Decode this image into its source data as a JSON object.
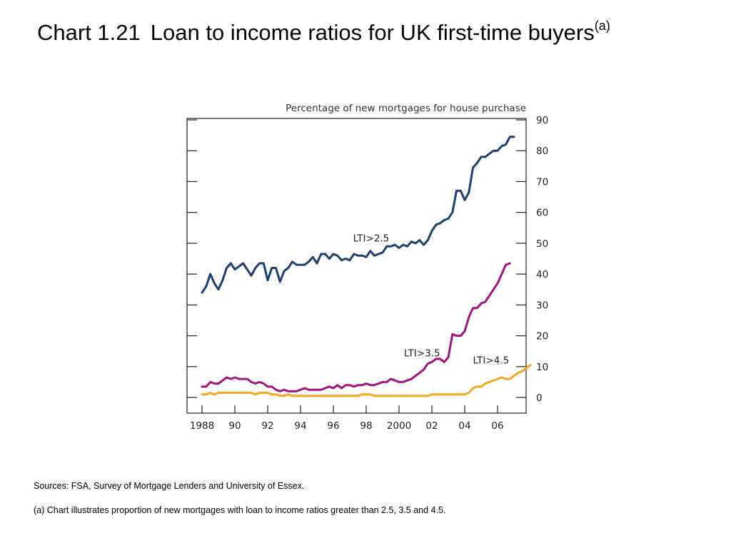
{
  "title": {
    "number": "Chart 1.21",
    "text": "Loan to income ratios for UK first-time buyers",
    "superscript": "(a)"
  },
  "footnotes": {
    "sources": "Sources:  FSA, Survey of Mortgage Lenders and University of Essex.",
    "note": "(a)  Chart illustrates proportion of new mortgages with loan to income ratios greater than 2.5, 3.5 and 4.5."
  },
  "chart_data": {
    "type": "line",
    "axis_caption": "Percentage of new mortgages for house purchase",
    "y_axis_side": "right",
    "ylim": [
      0,
      90
    ],
    "y_ticks": [
      0,
      10,
      20,
      30,
      40,
      50,
      60,
      70,
      80,
      90
    ],
    "xlim": [
      1987.6,
      2007.6
    ],
    "x_ticks": [
      {
        "value": 1988,
        "label": "1988"
      },
      {
        "value": 1990,
        "label": "90"
      },
      {
        "value": 1992,
        "label": "92"
      },
      {
        "value": 1994,
        "label": "94"
      },
      {
        "value": 1996,
        "label": "96"
      },
      {
        "value": 1998,
        "label": "98"
      },
      {
        "value": 2000,
        "label": "2000"
      },
      {
        "value": 2002,
        "label": "02"
      },
      {
        "value": 2004,
        "label": "04"
      },
      {
        "value": 2006,
        "label": "06"
      }
    ],
    "grid": false,
    "x_start": 1988.0,
    "x_step": 0.25,
    "series": [
      {
        "name": "LTI>2.5",
        "color": "#1f3f6e",
        "label_at": [
          1997.2,
          50.5
        ],
        "values": [
          34,
          36,
          40,
          37,
          35,
          38,
          42,
          43.5,
          41.5,
          42.5,
          43.5,
          41.5,
          39.5,
          42,
          43.5,
          43.5,
          38,
          42,
          42,
          37.5,
          41,
          42,
          44,
          43,
          43,
          43,
          44,
          45.5,
          43.5,
          46.5,
          46.5,
          45,
          46.5,
          46,
          44.5,
          45,
          44.5,
          46.5,
          46,
          46,
          45.5,
          47.5,
          46,
          46.5,
          47,
          49,
          49,
          49.5,
          48.5,
          49.5,
          49,
          50.5,
          50,
          51,
          49.5,
          51,
          54,
          56,
          56.5,
          57.5,
          58,
          60,
          67,
          67,
          64,
          66.5,
          74.5,
          76,
          78,
          78,
          79,
          80,
          80,
          81.5,
          82,
          84.5,
          84.5
        ]
      },
      {
        "name": "LTI>3.5",
        "color": "#a0167c",
        "label_at": [
          2000.3,
          13.3
        ],
        "values": [
          3.5,
          3.5,
          5,
          4.5,
          4.5,
          5.5,
          6.5,
          6,
          6.5,
          6,
          6,
          6,
          5,
          4.5,
          5,
          4.5,
          3.5,
          3.5,
          2.5,
          2,
          2.5,
          2,
          2,
          2,
          2.5,
          3,
          2.5,
          2.5,
          2.5,
          2.5,
          3,
          3.5,
          3,
          4,
          3,
          4,
          4,
          3.5,
          4,
          4,
          4.5,
          4,
          4,
          4.5,
          5,
          5,
          6,
          5.5,
          5,
          5,
          5.5,
          6,
          7,
          8,
          9,
          11,
          11.5,
          12.5,
          12.5,
          11.5,
          13,
          20.5,
          20,
          20,
          21.5,
          26,
          29,
          29,
          30.5,
          31,
          33,
          35,
          37,
          40,
          43,
          43.5
        ]
      },
      {
        "name": "LTI>4.5",
        "color": "#f5a623",
        "label_at": [
          2004.5,
          11.0
        ],
        "values": [
          1,
          1,
          1.5,
          1,
          1.5,
          1.5,
          1.5,
          1.5,
          1.5,
          1.5,
          1.5,
          1.5,
          1.5,
          1,
          1.5,
          1.5,
          1.5,
          1,
          1,
          0.5,
          0.5,
          1,
          0.5,
          0.5,
          0.5,
          0.5,
          0.5,
          0.5,
          0.5,
          0.5,
          0.5,
          0.5,
          0.5,
          0.5,
          0.5,
          0.5,
          0.5,
          0.5,
          0.5,
          1,
          1,
          1,
          0.5,
          0.5,
          0.5,
          0.5,
          0.5,
          0.5,
          0.5,
          0.5,
          0.5,
          0.5,
          0.5,
          0.5,
          0.5,
          0.5,
          1,
          1,
          1,
          1,
          1,
          1,
          1,
          1,
          1,
          1.5,
          3,
          3.5,
          3.5,
          4.5,
          5,
          5.5,
          6,
          6.5,
          6,
          6,
          7,
          8,
          8.5,
          9.5,
          10.5
        ]
      }
    ]
  }
}
